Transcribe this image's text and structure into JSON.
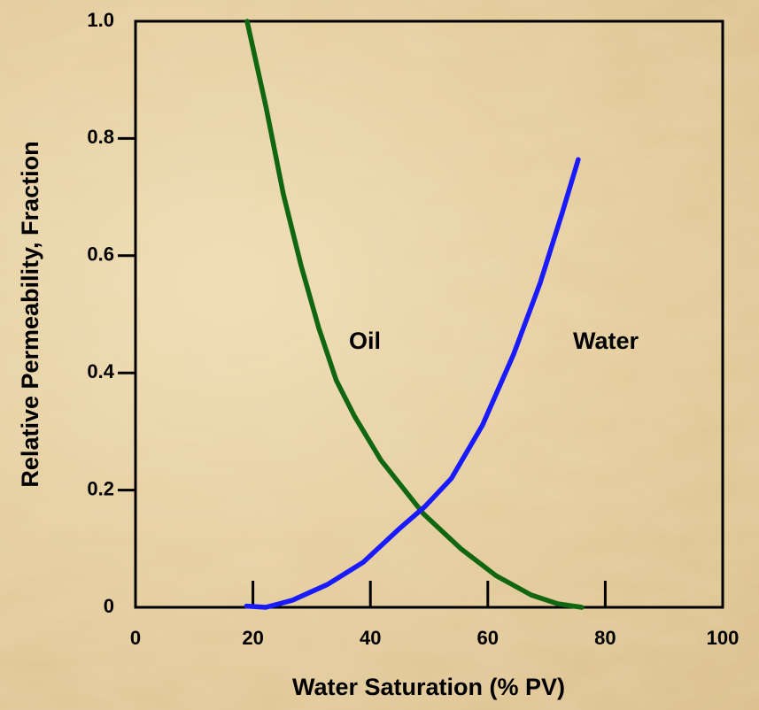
{
  "chart_data": {
    "type": "line",
    "xlabel": "Water Saturation (% PV)",
    "ylabel": "Relative Permeability, Fraction",
    "xlim": [
      0,
      100
    ],
    "ylim": [
      0,
      1
    ],
    "xticks": [
      0,
      20,
      40,
      60,
      80,
      100
    ],
    "yticks": [
      0,
      0.2,
      0.4,
      0.6,
      0.8,
      {
        "value": 1,
        "label": "1.0"
      }
    ],
    "series": [
      {
        "name": "Oil",
        "color": "#116611",
        "x": [
          19.0,
          22.2,
          25.2,
          28.2,
          31.2,
          34.2,
          37.3,
          41.8,
          49.0,
          55.4,
          61.4,
          67.4,
          71.9,
          76.0
        ],
        "values": [
          1.0,
          0.855,
          0.704,
          0.583,
          0.477,
          0.387,
          0.326,
          0.251,
          0.16,
          0.1,
          0.054,
          0.021,
          0.006,
          0.0
        ]
      },
      {
        "name": "Water",
        "color": "#1a1aff",
        "x": [
          18.9,
          22.2,
          26.7,
          32.7,
          38.8,
          44.8,
          49.3,
          53.8,
          59.1,
          64.4,
          68.9,
          72.7,
          75.4
        ],
        "values": [
          0.002,
          0.0,
          0.012,
          0.039,
          0.077,
          0.133,
          0.172,
          0.22,
          0.311,
          0.432,
          0.553,
          0.674,
          0.764
        ]
      }
    ]
  }
}
